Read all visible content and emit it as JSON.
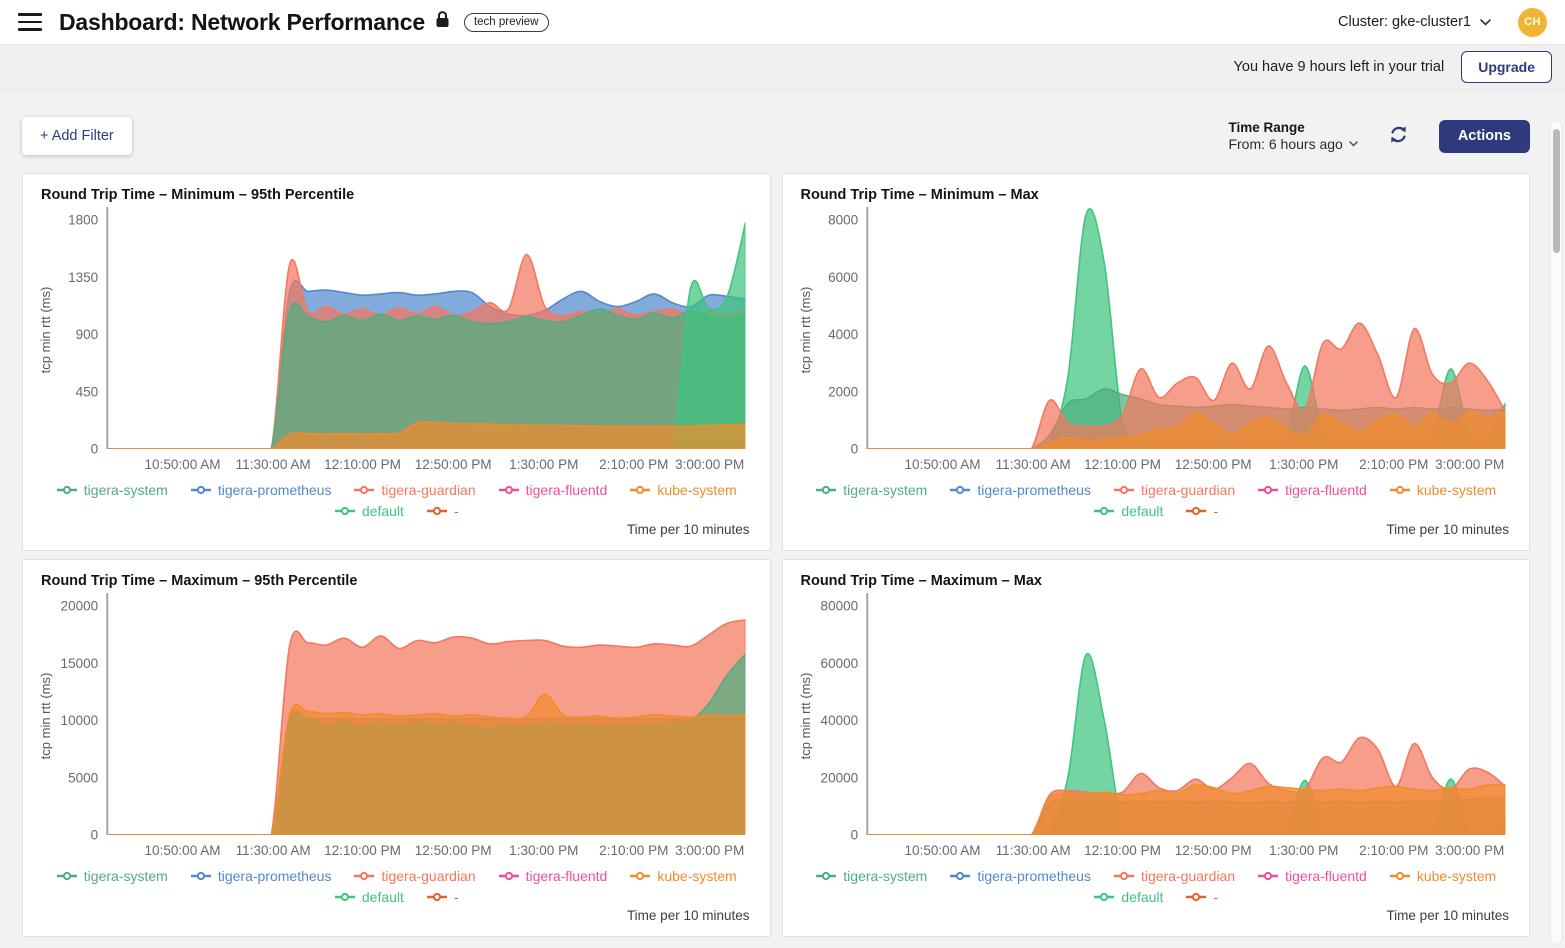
{
  "header": {
    "title": "Dashboard: Network Performance",
    "badge": "tech preview",
    "cluster_label": "Cluster: gke-cluster1",
    "avatar_initials": "CH"
  },
  "trial_banner": {
    "message": "You have 9 hours left in your trial",
    "upgrade_label": "Upgrade"
  },
  "toolbar": {
    "add_filter_label": "+ Add Filter",
    "time_range_title": "Time Range",
    "time_range_value": "From: 6 hours ago",
    "actions_label": "Actions"
  },
  "colors": {
    "accent_navy": "#2e3a7c",
    "avatar_gold": "#f1b434",
    "axis_line": "#a5a5a5",
    "tick_text": "#6a6a6a"
  },
  "series_colors": {
    "tigera-system": "#4fae7f",
    "tigera-prometheus": "#5289cc",
    "tigera-guardian": "#f4775e",
    "tigera-fluentd": "#ee4f9b",
    "kube-system": "#f08c2c",
    "default": "#3fc580",
    "-": "#e2602e"
  },
  "legend_rows": [
    [
      "tigera-system",
      "tigera-prometheus",
      "tigera-guardian",
      "tigera-fluentd",
      "kube-system"
    ],
    [
      "default",
      "-"
    ]
  ],
  "chart_data": [
    {
      "type": "area",
      "title": "Round Trip Time – Minimum – 95th Percentile",
      "ylabel": "tcp min rtt (ms)",
      "footer": "Time per 10 minutes",
      "y_ticks": [
        0,
        450,
        900,
        1350,
        1800
      ],
      "ylim": [
        0,
        1800
      ],
      "x_ticks": [
        "10:50:00 AM",
        "11:30:00 AM",
        "12:10:00 PM",
        "12:50:00 PM",
        "1:30:00 PM",
        "2:10:00 PM",
        "3:00:00 PM"
      ],
      "x_tick_pos": [
        0.118,
        0.26,
        0.4,
        0.542,
        0.684,
        0.825,
        0.944
      ],
      "series": [
        {
          "name": "tigera-fluentd",
          "values": [
            0,
            0,
            0,
            0,
            0,
            0,
            0,
            0,
            0,
            0,
            70,
            70,
            70,
            70,
            70,
            70,
            70,
            70,
            70,
            70,
            70,
            70,
            70,
            70,
            70,
            70,
            70,
            70,
            70,
            70,
            70,
            70,
            70,
            70,
            70,
            70
          ]
        },
        {
          "name": "tigera-prometheus",
          "values": [
            0,
            0,
            0,
            0,
            0,
            0,
            0,
            0,
            0,
            0,
            1230,
            1240,
            1250,
            1230,
            1210,
            1220,
            1230,
            1210,
            1220,
            1240,
            1230,
            1120,
            1060,
            1050,
            1090,
            1180,
            1240,
            1160,
            1120,
            1160,
            1220,
            1150,
            1120,
            1210,
            1200,
            1180
          ]
        },
        {
          "name": "tigera-guardian",
          "values": [
            0,
            0,
            0,
            0,
            0,
            0,
            0,
            0,
            0,
            0,
            1450,
            1080,
            1120,
            1060,
            1100,
            1050,
            1110,
            1060,
            1120,
            1050,
            1080,
            1150,
            1100,
            1530,
            1120,
            1050,
            1080,
            1060,
            1100,
            1050,
            1080,
            1100,
            1050,
            1080,
            1060,
            1100
          ]
        },
        {
          "name": "tigera-system",
          "values": [
            0,
            0,
            0,
            0,
            0,
            0,
            0,
            0,
            0,
            0,
            1080,
            1040,
            1000,
            1050,
            1010,
            1060,
            1010,
            1045,
            1020,
            1050,
            1000,
            985,
            1000,
            1040,
            1010,
            1000,
            1050,
            1100,
            1050,
            1020,
            1070,
            1030,
            1090,
            1050,
            1030,
            1060
          ]
        },
        {
          "name": "default",
          "values": [
            0,
            0,
            0,
            0,
            0,
            0,
            0,
            0,
            0,
            0,
            0,
            0,
            0,
            0,
            0,
            0,
            0,
            0,
            0,
            0,
            0,
            0,
            0,
            0,
            0,
            0,
            0,
            0,
            0,
            0,
            0,
            0,
            1270,
            1100,
            1200,
            1780
          ]
        },
        {
          "name": "kube-system",
          "values": [
            0,
            0,
            0,
            0,
            0,
            0,
            0,
            0,
            0,
            0,
            115,
            120,
            118,
            120,
            118,
            120,
            125,
            205,
            210,
            200,
            195,
            195,
            190,
            188,
            185,
            185,
            182,
            180,
            180,
            178,
            178,
            180,
            182,
            185,
            190,
            195
          ]
        }
      ]
    },
    {
      "type": "area",
      "title": "Round Trip Time – Minimum – Max",
      "ylabel": "tcp min rtt (ms)",
      "footer": "Time per 10 minutes",
      "y_ticks": [
        0,
        2000,
        4000,
        6000,
        8000
      ],
      "ylim": [
        0,
        8000
      ],
      "x_ticks": [
        "10:50:00 AM",
        "11:30:00 AM",
        "12:10:00 PM",
        "12:50:00 PM",
        "1:30:00 PM",
        "2:10:00 PM",
        "3:00:00 PM"
      ],
      "x_tick_pos": [
        0.118,
        0.26,
        0.4,
        0.542,
        0.684,
        0.825,
        0.944
      ],
      "series": [
        {
          "name": "default",
          "values": [
            0,
            0,
            0,
            0,
            0,
            0,
            0,
            0,
            0,
            0,
            300,
            2500,
            8200,
            6500,
            900,
            400,
            350,
            400,
            400,
            400,
            450,
            400,
            400,
            500,
            2900,
            600,
            400,
            450,
            400,
            450,
            400,
            500,
            2800,
            600,
            500,
            1600
          ]
        },
        {
          "name": "tigera-system",
          "values": [
            0,
            0,
            0,
            0,
            0,
            0,
            0,
            0,
            0,
            0,
            500,
            1600,
            1750,
            2100,
            1900,
            1750,
            1550,
            1500,
            1450,
            1500,
            1550,
            1500,
            1450,
            1400,
            1450,
            1400,
            1350,
            1400,
            1450,
            1400,
            1450,
            1400,
            1450,
            1400,
            1350,
            1400
          ]
        },
        {
          "name": "tigera-guardian",
          "values": [
            0,
            0,
            0,
            0,
            0,
            0,
            0,
            0,
            0,
            0,
            1700,
            900,
            800,
            800,
            1200,
            2800,
            1800,
            2300,
            2500,
            1700,
            3000,
            2100,
            3600,
            2300,
            1400,
            3700,
            3500,
            4400,
            3300,
            1800,
            4200,
            2600,
            2300,
            3000,
            2400,
            1300
          ]
        },
        {
          "name": "kube-system",
          "values": [
            0,
            0,
            0,
            0,
            0,
            0,
            0,
            0,
            0,
            0,
            200,
            400,
            300,
            350,
            400,
            500,
            700,
            800,
            1250,
            900,
            500,
            900,
            1100,
            700,
            500,
            1200,
            900,
            600,
            1000,
            1200,
            800,
            1250,
            900,
            1300,
            1100,
            1300
          ]
        }
      ]
    },
    {
      "type": "area",
      "title": "Round Trip Time – Maximum – 95th Percentile",
      "ylabel": "tcp min rtt (ms)",
      "footer": "Time per 10 minutes",
      "y_ticks": [
        0,
        5000,
        10000,
        15000,
        20000
      ],
      "ylim": [
        0,
        20000
      ],
      "x_ticks": [
        "10:50:00 AM",
        "11:30:00 AM",
        "12:10:00 PM",
        "12:50:00 PM",
        "1:30:00 PM",
        "2:10:00 PM",
        "3:00:00 PM"
      ],
      "x_tick_pos": [
        0.118,
        0.26,
        0.4,
        0.542,
        0.684,
        0.825,
        0.944
      ],
      "series": [
        {
          "name": "tigera-prometheus",
          "values": [
            0,
            0,
            0,
            0,
            0,
            0,
            0,
            0,
            0,
            0,
            10150,
            10150,
            10150,
            10150,
            10150,
            10150,
            10150,
            10150,
            10150,
            10150,
            10150,
            10150,
            10150,
            10150,
            10150,
            10150,
            10150,
            10150,
            10150,
            10150,
            10150,
            10150,
            10150,
            10150,
            10150,
            10150
          ]
        },
        {
          "name": "tigera-guardian",
          "values": [
            0,
            0,
            0,
            0,
            0,
            0,
            0,
            0,
            0,
            0,
            16500,
            16800,
            16600,
            17200,
            16400,
            17400,
            16300,
            17000,
            16800,
            17300,
            17200,
            16700,
            16900,
            17000,
            17000,
            16500,
            16400,
            16600,
            16500,
            16400,
            16700,
            16600,
            16500,
            17500,
            18500,
            18800
          ]
        },
        {
          "name": "tigera-system",
          "values": [
            0,
            0,
            0,
            0,
            0,
            0,
            0,
            0,
            0,
            0,
            9800,
            10200,
            9500,
            9900,
            9400,
            9800,
            9500,
            9900,
            9600,
            9800,
            9500,
            9300,
            9600,
            9400,
            9800,
            9500,
            9700,
            9400,
            9600,
            9500,
            9700,
            9800,
            10000,
            11500,
            14000,
            15800
          ]
        },
        {
          "name": "kube-system",
          "values": [
            0,
            0,
            0,
            0,
            0,
            0,
            0,
            0,
            0,
            0,
            10500,
            10800,
            10600,
            10700,
            10500,
            10600,
            10400,
            10500,
            10600,
            10400,
            10500,
            10300,
            10200,
            10400,
            12300,
            10500,
            10300,
            10400,
            10200,
            10300,
            10500,
            10400,
            10300,
            10500,
            10400,
            10500
          ]
        }
      ]
    },
    {
      "type": "area",
      "title": "Round Trip Time – Maximum – Max",
      "ylabel": "tcp min rtt (ms)",
      "footer": "Time per 10 minutes",
      "y_ticks": [
        0,
        20000,
        40000,
        60000,
        80000
      ],
      "ylim": [
        0,
        80000
      ],
      "x_ticks": [
        "10:50:00 AM",
        "11:30:00 AM",
        "12:10:00 PM",
        "12:50:00 PM",
        "1:30:00 PM",
        "2:10:00 PM",
        "3:00:00 PM"
      ],
      "x_tick_pos": [
        0.118,
        0.26,
        0.4,
        0.542,
        0.684,
        0.825,
        0.944
      ],
      "series": [
        {
          "name": "default",
          "values": [
            0,
            0,
            0,
            0,
            0,
            0,
            0,
            0,
            0,
            0,
            2000,
            20000,
            63000,
            40000,
            3000,
            1500,
            1500,
            1500,
            1500,
            1500,
            1500,
            1500,
            1500,
            2000,
            19000,
            2500,
            1500,
            1500,
            1500,
            1500,
            1500,
            2000,
            19500,
            2500,
            1500,
            6000
          ]
        },
        {
          "name": "tigera-system",
          "values": [
            0,
            0,
            0,
            0,
            0,
            0,
            0,
            0,
            0,
            0,
            11000,
            12000,
            11500,
            12000,
            11500,
            11800,
            11500,
            11800,
            11500,
            11800,
            11500,
            11300,
            11600,
            11400,
            11800,
            11500,
            11700,
            11400,
            11600,
            11500,
            11700,
            11800,
            12000,
            12500,
            13000,
            13000
          ]
        },
        {
          "name": "tigera-guardian",
          "values": [
            0,
            0,
            0,
            0,
            0,
            0,
            0,
            0,
            0,
            0,
            14000,
            15500,
            15000,
            14500,
            15000,
            21500,
            16500,
            15500,
            19500,
            16000,
            20000,
            25000,
            18000,
            15500,
            16000,
            27000,
            25500,
            34000,
            30000,
            17000,
            32000,
            20000,
            16000,
            23000,
            22000,
            17000
          ]
        },
        {
          "name": "kube-system",
          "values": [
            0,
            0,
            0,
            0,
            0,
            0,
            0,
            0,
            0,
            0,
            13000,
            14500,
            14000,
            15000,
            14000,
            14500,
            15500,
            14500,
            17500,
            16500,
            14500,
            15500,
            17000,
            16500,
            16000,
            15500,
            16000,
            15500,
            16500,
            17000,
            16000,
            15500,
            16500,
            16000,
            17500,
            17500
          ]
        }
      ]
    }
  ]
}
